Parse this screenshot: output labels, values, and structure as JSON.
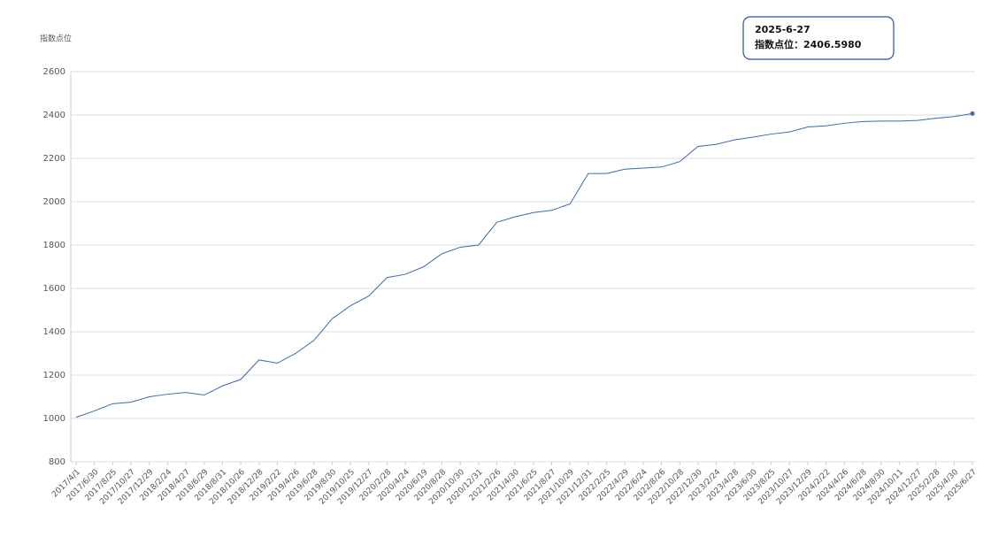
{
  "chart_data": {
    "type": "line",
    "y_label": "指数点位",
    "categories": [
      "2017/4/1",
      "2017/6/30",
      "2017/8/25",
      "2017/10/27",
      "2017/12/29",
      "2018/2/24",
      "2018/4/27",
      "2018/6/29",
      "2018/8/31",
      "2018/10/26",
      "2018/12/28",
      "2019/2/22",
      "2019/4/26",
      "2019/6/28",
      "2019/8/30",
      "2019/10/25",
      "2019/12/27",
      "2020/2/28",
      "2020/4/24",
      "2020/6/19",
      "2020/8/28",
      "2020/10/30",
      "2020/12/31",
      "2021/2/26",
      "2021/4/30",
      "2021/6/25",
      "2021/8/27",
      "2021/10/29",
      "2021/12/31",
      "2022/2/25",
      "2022/4/29",
      "2022/6/24",
      "2022/8/26",
      "2022/10/28",
      "2022/12/30",
      "2023/2/24",
      "2023/4/28",
      "2023/6/30",
      "2023/8/25",
      "2023/10/27",
      "2023/12/29",
      "2024/2/22",
      "2024/4/26",
      "2024/6/28",
      "2024/8/30",
      "2024/10/11",
      "2024/12/27",
      "2025/2/28",
      "2025/4/30",
      "2025/6/27"
    ],
    "values": [
      1005,
      1035,
      1068,
      1075,
      1100,
      1112,
      1120,
      1108,
      1150,
      1180,
      1270,
      1255,
      1300,
      1360,
      1460,
      1520,
      1565,
      1650,
      1665,
      1700,
      1760,
      1790,
      1800,
      1905,
      1930,
      1950,
      1960,
      1990,
      2130,
      2130,
      2150,
      2155,
      2160,
      2185,
      2255,
      2265,
      2285,
      2298,
      2312,
      2322,
      2345,
      2350,
      2362,
      2370,
      2372,
      2372,
      2375,
      2385,
      2393,
      2406.598
    ],
    "color": "#3a6ab0",
    "ylim": [
      800,
      2600
    ],
    "yticks": [
      800,
      1000,
      1200,
      1400,
      1600,
      1800,
      2000,
      2200,
      2400,
      2600
    ],
    "grid": true,
    "tooltip": {
      "date": "2025-6-27",
      "label": "指数点位：",
      "value_label": "2406.5980"
    }
  }
}
